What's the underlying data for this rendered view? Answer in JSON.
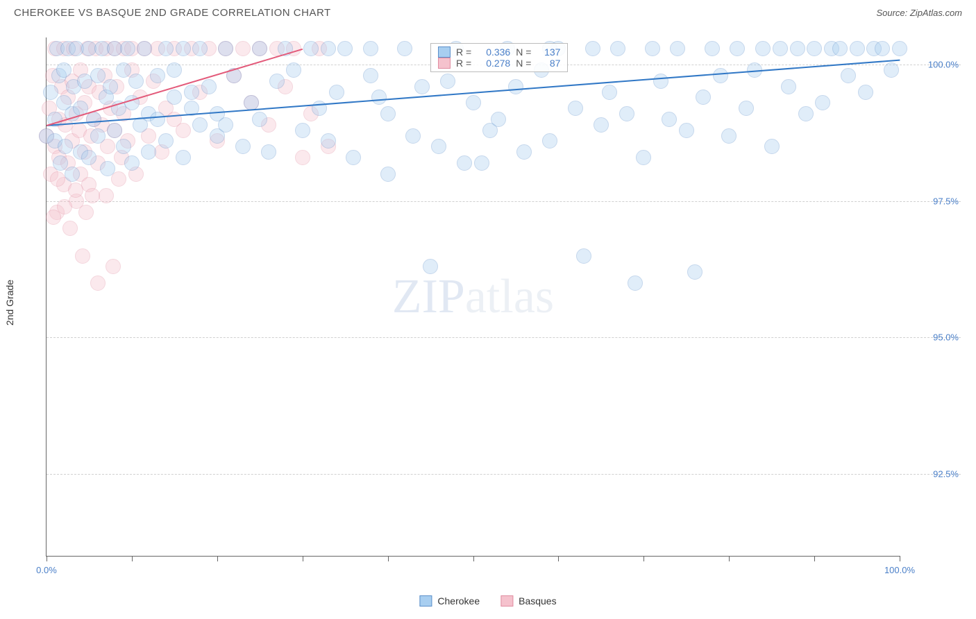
{
  "title": "CHEROKEE VS BASQUE 2ND GRADE CORRELATION CHART",
  "source": "Source: ZipAtlas.com",
  "ylabel": "2nd Grade",
  "watermark_a": "ZIP",
  "watermark_b": "atlas",
  "chart": {
    "type": "scatter",
    "background_color": "#ffffff",
    "grid_color": "#d0d0d0",
    "axis_color": "#666666",
    "xlim": [
      0,
      100
    ],
    "ylim": [
      91,
      100.5
    ],
    "xtick_positions": [
      0,
      10,
      20,
      30,
      40,
      50,
      60,
      70,
      80,
      90,
      100
    ],
    "xtick_labels": {
      "0": "0.0%",
      "100": "100.0%"
    },
    "ytick_positions": [
      92.5,
      95.0,
      97.5,
      100.0
    ],
    "ytick_labels": [
      "92.5%",
      "95.0%",
      "97.5%",
      "100.0%"
    ],
    "marker_radius": 11,
    "marker_opacity": 0.35,
    "series": [
      {
        "name": "Cherokee",
        "color_fill": "#a8cef0",
        "color_stroke": "#5b8fca",
        "trend_color": "#3178c6",
        "r": "0.336",
        "n": "137",
        "trend_line": {
          "x1": 0,
          "y1": 98.9,
          "x2": 100,
          "y2": 100.1
        },
        "points": [
          [
            0,
            98.7
          ],
          [
            0.5,
            99.5
          ],
          [
            1,
            98.6
          ],
          [
            1,
            99.0
          ],
          [
            1.2,
            100.3
          ],
          [
            1.5,
            99.8
          ],
          [
            1.6,
            98.2
          ],
          [
            2,
            99.3
          ],
          [
            2,
            99.9
          ],
          [
            2.2,
            98.5
          ],
          [
            2.5,
            100.3
          ],
          [
            3,
            99.1
          ],
          [
            3,
            98.0
          ],
          [
            3.2,
            99.6
          ],
          [
            3.5,
            100.3
          ],
          [
            4,
            98.4
          ],
          [
            4,
            99.2
          ],
          [
            4.5,
            99.7
          ],
          [
            5,
            100.3
          ],
          [
            5,
            98.3
          ],
          [
            5.5,
            99.0
          ],
          [
            6,
            99.8
          ],
          [
            6,
            98.7
          ],
          [
            6.5,
            100.3
          ],
          [
            7,
            99.4
          ],
          [
            7.2,
            98.1
          ],
          [
            7.5,
            99.6
          ],
          [
            8,
            100.3
          ],
          [
            8,
            98.8
          ],
          [
            8.5,
            99.2
          ],
          [
            9,
            99.9
          ],
          [
            9,
            98.5
          ],
          [
            9.5,
            100.3
          ],
          [
            10,
            99.3
          ],
          [
            10,
            98.2
          ],
          [
            10.5,
            99.7
          ],
          [
            11,
            98.9
          ],
          [
            11.5,
            100.3
          ],
          [
            12,
            99.1
          ],
          [
            12,
            98.4
          ],
          [
            13,
            99.8
          ],
          [
            13,
            99.0
          ],
          [
            14,
            100.3
          ],
          [
            14,
            98.6
          ],
          [
            15,
            99.4
          ],
          [
            15,
            99.9
          ],
          [
            16,
            98.3
          ],
          [
            16,
            100.3
          ],
          [
            17,
            99.2
          ],
          [
            18,
            98.9
          ],
          [
            18,
            100.3
          ],
          [
            19,
            99.6
          ],
          [
            20,
            98.7
          ],
          [
            20,
            99.1
          ],
          [
            21,
            100.3
          ],
          [
            22,
            99.8
          ],
          [
            23,
            98.5
          ],
          [
            24,
            99.3
          ],
          [
            25,
            100.3
          ],
          [
            25,
            99.0
          ],
          [
            26,
            98.4
          ],
          [
            27,
            99.7
          ],
          [
            28,
            100.3
          ],
          [
            29,
            99.9
          ],
          [
            30,
            98.8
          ],
          [
            31,
            100.3
          ],
          [
            32,
            99.2
          ],
          [
            33,
            98.6
          ],
          [
            34,
            99.5
          ],
          [
            35,
            100.3
          ],
          [
            36,
            98.3
          ],
          [
            38,
            99.8
          ],
          [
            38,
            100.3
          ],
          [
            40,
            99.1
          ],
          [
            40,
            98.0
          ],
          [
            42,
            100.3
          ],
          [
            43,
            98.7
          ],
          [
            44,
            99.6
          ],
          [
            45,
            96.3
          ],
          [
            46,
            98.5
          ],
          [
            48,
            100.3
          ],
          [
            49,
            98.2
          ],
          [
            50,
            99.3
          ],
          [
            52,
            98.8
          ],
          [
            53,
            99.0
          ],
          [
            54,
            100.3
          ],
          [
            56,
            98.4
          ],
          [
            58,
            99.9
          ],
          [
            59,
            98.6
          ],
          [
            60,
            100.3
          ],
          [
            62,
            99.2
          ],
          [
            63,
            96.5
          ],
          [
            64,
            100.3
          ],
          [
            65,
            98.9
          ],
          [
            66,
            99.5
          ],
          [
            67,
            100.3
          ],
          [
            68,
            99.1
          ],
          [
            69,
            96.0
          ],
          [
            70,
            98.3
          ],
          [
            71,
            100.3
          ],
          [
            72,
            99.7
          ],
          [
            73,
            99.0
          ],
          [
            74,
            100.3
          ],
          [
            75,
            98.8
          ],
          [
            76,
            96.2
          ],
          [
            77,
            99.4
          ],
          [
            78,
            100.3
          ],
          [
            79,
            99.8
          ],
          [
            80,
            98.7
          ],
          [
            81,
            100.3
          ],
          [
            82,
            99.2
          ],
          [
            83,
            99.9
          ],
          [
            84,
            100.3
          ],
          [
            85,
            98.5
          ],
          [
            86,
            100.3
          ],
          [
            87,
            99.6
          ],
          [
            88,
            100.3
          ],
          [
            89,
            99.1
          ],
          [
            90,
            100.3
          ],
          [
            91,
            99.3
          ],
          [
            92,
            100.3
          ],
          [
            93,
            100.3
          ],
          [
            94,
            99.8
          ],
          [
            95,
            100.3
          ],
          [
            96,
            99.5
          ],
          [
            97,
            100.3
          ],
          [
            98,
            100.3
          ],
          [
            99,
            99.9
          ],
          [
            100,
            100.3
          ],
          [
            51,
            98.2
          ],
          [
            55,
            99.6
          ],
          [
            59,
            100.3
          ],
          [
            39,
            99.4
          ],
          [
            47,
            99.7
          ],
          [
            33,
            100.3
          ],
          [
            21,
            98.9
          ],
          [
            17,
            99.5
          ]
        ]
      },
      {
        "name": "Basques",
        "color_fill": "#f5c2cd",
        "color_stroke": "#e08ca0",
        "trend_color": "#e35a7a",
        "r": "0.278",
        "n": "87",
        "trend_line": {
          "x1": 0,
          "y1": 98.9,
          "x2": 30,
          "y2": 100.3
        },
        "points": [
          [
            0,
            98.7
          ],
          [
            0.3,
            99.2
          ],
          [
            0.5,
            98.0
          ],
          [
            0.7,
            99.8
          ],
          [
            1,
            98.5
          ],
          [
            1,
            100.3
          ],
          [
            1.2,
            97.3
          ],
          [
            1.5,
            99.0
          ],
          [
            1.5,
            98.3
          ],
          [
            1.8,
            99.6
          ],
          [
            2,
            97.8
          ],
          [
            2,
            100.3
          ],
          [
            2.2,
            98.9
          ],
          [
            2.5,
            99.4
          ],
          [
            2.5,
            98.2
          ],
          [
            2.8,
            97.0
          ],
          [
            3,
            99.7
          ],
          [
            3,
            98.6
          ],
          [
            3.2,
            100.3
          ],
          [
            3.5,
            99.1
          ],
          [
            3.5,
            97.5
          ],
          [
            3.8,
            98.8
          ],
          [
            4,
            99.9
          ],
          [
            4,
            98.0
          ],
          [
            4.2,
            96.5
          ],
          [
            4.5,
            99.3
          ],
          [
            4.5,
            98.4
          ],
          [
            4.8,
            100.3
          ],
          [
            5,
            99.6
          ],
          [
            5,
            97.8
          ],
          [
            5.2,
            98.7
          ],
          [
            5.5,
            99.0
          ],
          [
            5.8,
            100.3
          ],
          [
            6,
            98.2
          ],
          [
            6,
            96.0
          ],
          [
            6.2,
            99.5
          ],
          [
            6.5,
            98.9
          ],
          [
            6.8,
            99.8
          ],
          [
            7,
            97.6
          ],
          [
            7,
            100.3
          ],
          [
            7.2,
            98.5
          ],
          [
            7.5,
            99.2
          ],
          [
            7.8,
            96.3
          ],
          [
            8,
            100.3
          ],
          [
            8,
            98.8
          ],
          [
            8.2,
            99.6
          ],
          [
            8.5,
            97.9
          ],
          [
            8.8,
            98.3
          ],
          [
            9,
            100.3
          ],
          [
            9,
            99.1
          ],
          [
            9.5,
            98.6
          ],
          [
            10,
            99.9
          ],
          [
            10,
            100.3
          ],
          [
            10.5,
            98.0
          ],
          [
            11,
            99.4
          ],
          [
            11.5,
            100.3
          ],
          [
            12,
            98.7
          ],
          [
            12.5,
            99.7
          ],
          [
            13,
            100.3
          ],
          [
            13.5,
            98.4
          ],
          [
            14,
            99.2
          ],
          [
            15,
            100.3
          ],
          [
            15,
            99.0
          ],
          [
            16,
            98.8
          ],
          [
            17,
            100.3
          ],
          [
            18,
            99.5
          ],
          [
            19,
            100.3
          ],
          [
            20,
            98.6
          ],
          [
            21,
            100.3
          ],
          [
            22,
            99.8
          ],
          [
            23,
            100.3
          ],
          [
            24,
            99.3
          ],
          [
            25,
            100.3
          ],
          [
            26,
            98.9
          ],
          [
            27,
            100.3
          ],
          [
            28,
            99.6
          ],
          [
            29,
            100.3
          ],
          [
            30,
            98.3
          ],
          [
            31,
            99.1
          ],
          [
            32,
            100.3
          ],
          [
            33,
            98.5
          ],
          [
            0.8,
            97.2
          ],
          [
            1.3,
            97.9
          ],
          [
            2.1,
            97.4
          ],
          [
            3.4,
            97.7
          ],
          [
            4.6,
            97.3
          ],
          [
            5.4,
            97.6
          ]
        ]
      }
    ]
  },
  "bottom_legend": [
    {
      "label": "Cherokee",
      "fill": "#a8cef0",
      "stroke": "#5b8fca"
    },
    {
      "label": "Basques",
      "fill": "#f5c2cd",
      "stroke": "#e08ca0"
    }
  ]
}
